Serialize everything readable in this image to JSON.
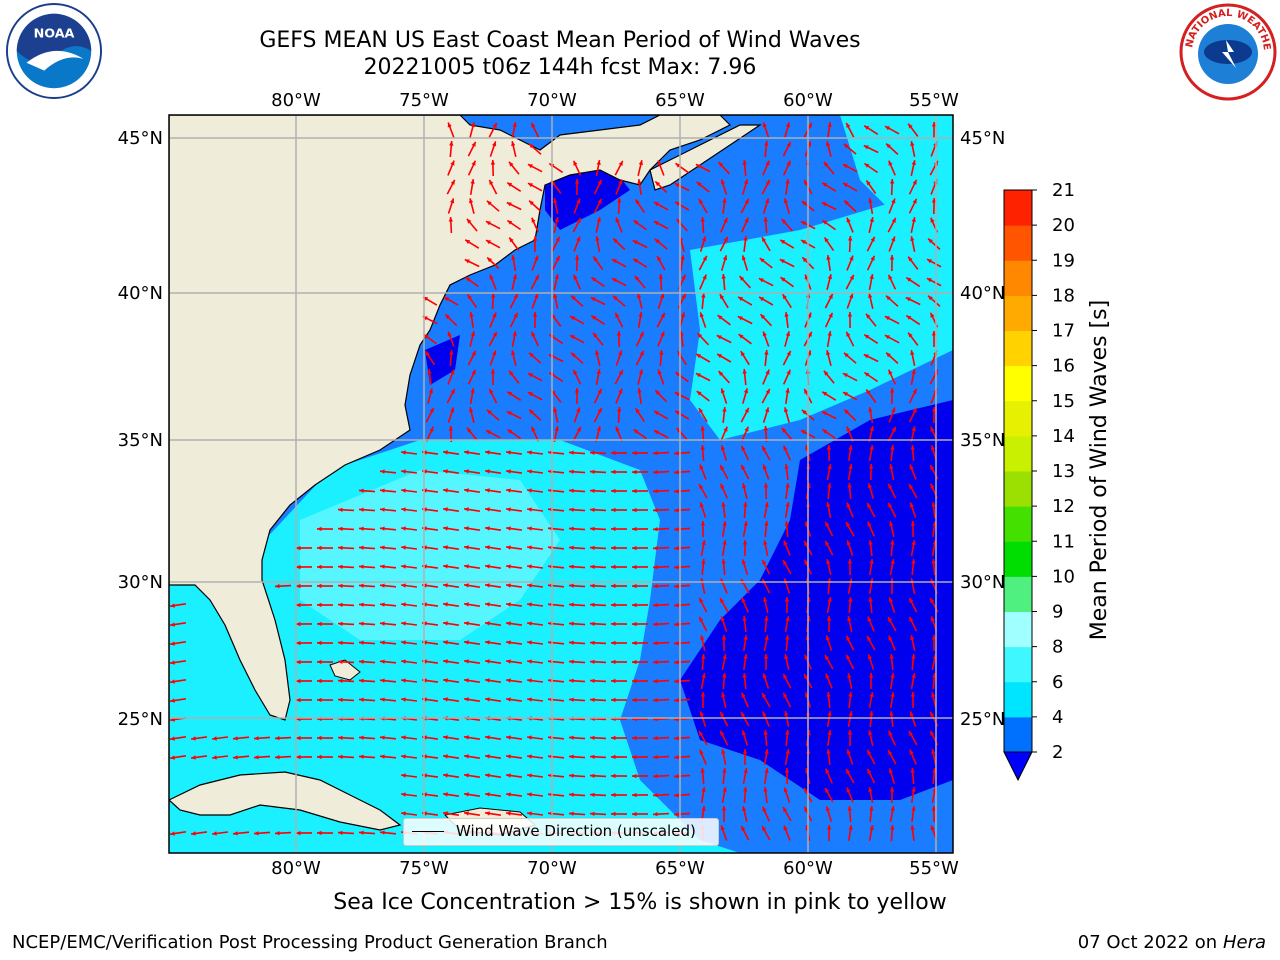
{
  "title": {
    "line1": "GEFS MEAN US East Coast Mean Period of Wind Waves",
    "line2": "20221005 t06z 144h fcst   Max: 7.96"
  },
  "map": {
    "lon_ticks_top": [
      "80°W",
      "75°W",
      "70°W",
      "65°W",
      "60°W",
      "55°W"
    ],
    "lon_ticks_bottom": [
      "80°W",
      "75°W",
      "70°W",
      "65°W",
      "60°W",
      "55°W"
    ],
    "lat_ticks_left": [
      "45°N",
      "40°N",
      "35°N",
      "30°N",
      "25°N"
    ],
    "lat_ticks_right": [
      "45°N",
      "40°N",
      "35°N",
      "30°N",
      "25°N"
    ],
    "legend_label": "Wind Wave Direction (unscaled)",
    "arrow_color": "#ff0000",
    "land_color": "#efedd9"
  },
  "colorbar": {
    "label": "Mean Period of Wind Waves [s]",
    "tick_labels": [
      "2",
      "4",
      "6",
      "8",
      "9",
      "10",
      "11",
      "12",
      "13",
      "14",
      "15",
      "16",
      "17",
      "18",
      "19",
      "20",
      "21"
    ],
    "colors": [
      "#0000ff",
      "#0070ff",
      "#00e5ff",
      "#3ff8ff",
      "#a0ffff",
      "#50f080",
      "#00dd00",
      "#44e000",
      "#9be000",
      "#c8f000",
      "#e6f000",
      "#ffff00",
      "#ffd200",
      "#ffaa00",
      "#ff8800",
      "#ff5500",
      "#ff2200",
      "#ff0000"
    ]
  },
  "notes": {
    "sea_ice": "Sea Ice Concentration > 15% is shown in pink to yellow"
  },
  "footer": {
    "left": "NCEP/EMC/Verification Post Processing Product Generation Branch",
    "date": "07 Oct 2022 on ",
    "machine": "Hera"
  },
  "logos": {
    "noaa": "NOAA",
    "nws": "NATIONAL WEATHER SERVICE"
  }
}
